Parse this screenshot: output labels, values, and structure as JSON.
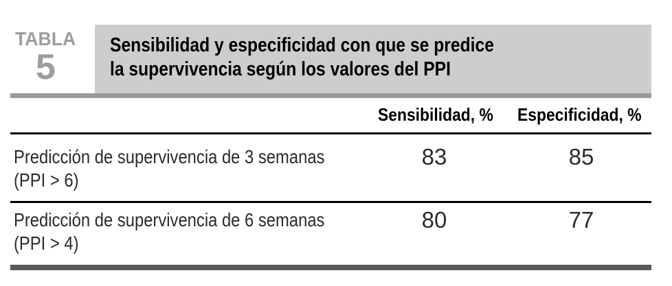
{
  "table": {
    "label": "TABLA",
    "number": "5",
    "title_line1": "Sensibilidad y especificidad con que se predice",
    "title_line2": "la supervivencia según los valores del PPI",
    "columns": [
      "Sensibilidad, %",
      "Especificidad, %"
    ],
    "rows": [
      {
        "label": "Predicción de supervivencia de 3 semanas",
        "condition": "(PPI > 6)",
        "sensibilidad": "83",
        "especificidad": "85"
      },
      {
        "label": "Predicción de supervivencia de 6 semanas",
        "condition": "(PPI > 4)",
        "sensibilidad": "80",
        "especificidad": "77"
      }
    ]
  },
  "colors": {
    "title_box_bg": "#cdcdcd",
    "table_label_gray": "#9d9d9d",
    "rule_gray": "#9a9a9a",
    "bottom_bar_gray": "#5a5a5a",
    "divider_black": "#000000",
    "body_text": "#2b2b2b",
    "heading_text": "#000000"
  }
}
